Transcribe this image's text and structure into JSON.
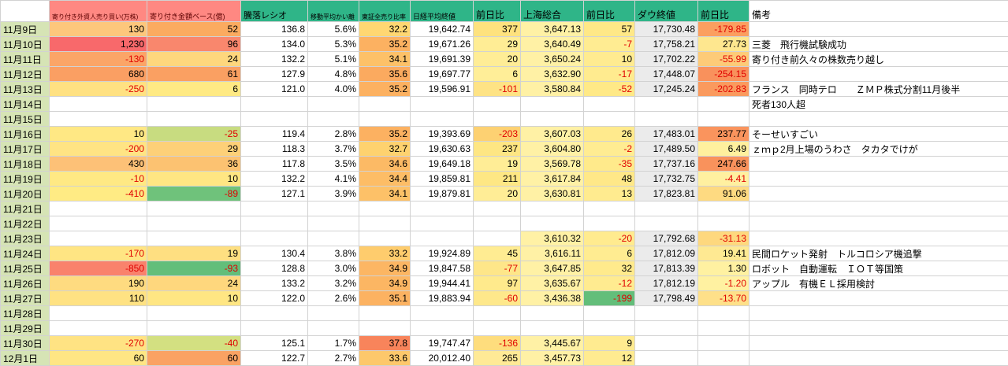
{
  "colors": {
    "date_column_bg": "#d6e4b5",
    "header_pink_bg": "#ff8882",
    "header_pink_text": "#5b0000",
    "header_teal_bg": "#2fb588",
    "negative_text": "#e00000",
    "dow_close_bg": "#ebebeb",
    "shanghai_bg": "#fff1a5",
    "gridline": "#d2d2d2"
  },
  "table": {
    "headers": [
      {
        "label": "",
        "bg": "#ffffff",
        "fg": "#000000"
      },
      {
        "label": "寄り付き外資人売り買い(万株)",
        "bg": "#ff8882",
        "fg": "#5b0000"
      },
      {
        "label": "寄り付き金額ベース(億)",
        "bg": "#ff8882",
        "fg": "#5b0000"
      },
      {
        "label": "騰落レシオ",
        "bg": "#2fb588",
        "fg": "#000000"
      },
      {
        "label": "移動平均かい離",
        "bg": "#2fb588",
        "fg": "#000000"
      },
      {
        "label": "東証全売り比率",
        "bg": "#2fb588",
        "fg": "#000000"
      },
      {
        "label": "日経平均終値",
        "bg": "#2fb588",
        "fg": "#000000"
      },
      {
        "label": "前日比",
        "bg": "#2fb588",
        "fg": "#000000"
      },
      {
        "label": "上海総合",
        "bg": "#2fb588",
        "fg": "#000000"
      },
      {
        "label": "前日比",
        "bg": "#2fb588",
        "fg": "#000000"
      },
      {
        "label": "ダウ終値",
        "bg": "#2fb588",
        "fg": "#000000"
      },
      {
        "label": "前日比",
        "bg": "#2fb588",
        "fg": "#000000"
      },
      {
        "label": "備考",
        "bg": "#ffffff",
        "fg": "#000000"
      }
    ],
    "rows": [
      {
        "date": "11月9日",
        "cells": [
          {
            "v": "130",
            "b": "#fdc77c"
          },
          {
            "v": "52",
            "b": "#fbab60"
          },
          {
            "v": "136.8",
            "b": ""
          },
          {
            "v": "5.6%",
            "b": ""
          },
          {
            "v": "32.2",
            "b": "#ffd772"
          },
          {
            "v": "19,642.74",
            "b": ""
          },
          {
            "v": "377",
            "b": "#fee27e"
          },
          {
            "v": "3,647.13",
            "b": "#fff1a5"
          },
          {
            "v": "57",
            "b": "#ffe887"
          },
          {
            "v": "17,730.48",
            "b": "#ebebeb"
          },
          {
            "v": "-179.85",
            "b": "#fb9f60"
          }
        ],
        "remark": ""
      },
      {
        "date": "11月10日",
        "cells": [
          {
            "v": "1,230",
            "b": "#f8696b"
          },
          {
            "v": "96",
            "b": "#f9876d"
          },
          {
            "v": "134.0",
            "b": ""
          },
          {
            "v": "5.3%",
            "b": ""
          },
          {
            "v": "35.2",
            "b": "#fcb161"
          },
          {
            "v": "19,671.26",
            "b": ""
          },
          {
            "v": "29",
            "b": "#ffed95"
          },
          {
            "v": "3,640.49",
            "b": "#fff1a5"
          },
          {
            "v": "-7",
            "b": "#ffec92"
          },
          {
            "v": "17,758.21",
            "b": "#ebebeb"
          },
          {
            "v": "27.73",
            "b": "#fee78f"
          }
        ],
        "remark": "三菱　飛行機試験成功"
      },
      {
        "date": "11月11日",
        "cells": [
          {
            "v": "-130",
            "b": "#fba567"
          },
          {
            "v": "24",
            "b": "#fed77d"
          },
          {
            "v": "132.2",
            "b": ""
          },
          {
            "v": "5.1%",
            "b": ""
          },
          {
            "v": "34.1",
            "b": "#fdc168"
          },
          {
            "v": "19,691.39",
            "b": ""
          },
          {
            "v": "20",
            "b": "#ffed96"
          },
          {
            "v": "3,650.24",
            "b": "#fff1a5"
          },
          {
            "v": "10",
            "b": "#ffeb90"
          },
          {
            "v": "17,702.22",
            "b": "#ebebeb"
          },
          {
            "v": "-55.99",
            "b": "#fdcb78"
          }
        ],
        "remark": "寄り付き前久々の株数売り越し"
      },
      {
        "date": "11月12日",
        "cells": [
          {
            "v": "680",
            "b": "#fa9f63"
          },
          {
            "v": "61",
            "b": "#faa062"
          },
          {
            "v": "127.9",
            "b": ""
          },
          {
            "v": "4.8%",
            "b": ""
          },
          {
            "v": "35.6",
            "b": "#fbaa5f"
          },
          {
            "v": "19,697.77",
            "b": ""
          },
          {
            "v": "6",
            "b": "#ffee98"
          },
          {
            "v": "3,632.90",
            "b": "#fff1a5"
          },
          {
            "v": "-17",
            "b": "#ffeb8f"
          },
          {
            "v": "17,448.07",
            "b": "#ebebeb"
          },
          {
            "v": "-254.15",
            "b": "#f9915c"
          }
        ],
        "remark": ""
      },
      {
        "date": "11月13日",
        "cells": [
          {
            "v": "-250",
            "b": "#ffe182"
          },
          {
            "v": "6",
            "b": "#ffea84"
          },
          {
            "v": "121.0",
            "b": ""
          },
          {
            "v": "4.0%",
            "b": ""
          },
          {
            "v": "35.2",
            "b": "#fcb161"
          },
          {
            "v": "19,596.91",
            "b": ""
          },
          {
            "v": "-101",
            "b": "#fee385"
          },
          {
            "v": "3,580.84",
            "b": "#fff1a5"
          },
          {
            "v": "-52",
            "b": "#ffe987"
          },
          {
            "v": "17,245.24",
            "b": "#ebebeb"
          },
          {
            "v": "-202.83",
            "b": "#fa9a5e"
          }
        ],
        "remark": "フランス　同時テロ　　ＺＭＰ株式分割11月後半"
      },
      {
        "date": "11月14日",
        "cells": [
          null,
          null,
          null,
          null,
          null,
          null,
          null,
          null,
          null,
          null,
          null
        ],
        "remark": "死者130人超"
      },
      {
        "date": "11月15日",
        "cells": [
          null,
          null,
          null,
          null,
          null,
          null,
          null,
          null,
          null,
          null,
          null
        ],
        "remark": ""
      },
      {
        "date": "11月16日",
        "cells": [
          {
            "v": "10",
            "b": "#ffe884"
          },
          {
            "v": "-25",
            "b": "#c8dc80"
          },
          {
            "v": "119.4",
            "b": ""
          },
          {
            "v": "2.8%",
            "b": ""
          },
          {
            "v": "35.2",
            "b": "#fcb161"
          },
          {
            "v": "19,393.69",
            "b": ""
          },
          {
            "v": "-203",
            "b": "#fdd172"
          },
          {
            "v": "3,607.03",
            "b": "#fff1a5"
          },
          {
            "v": "26",
            "b": "#ffea8d"
          },
          {
            "v": "17,483.01",
            "b": "#ebebeb"
          },
          {
            "v": "237.77",
            "b": "#fa945d"
          }
        ],
        "remark": "そーせいすごい"
      },
      {
        "date": "11月17日",
        "cells": [
          {
            "v": "-200",
            "b": "#ffe484"
          },
          {
            "v": "29",
            "b": "#fdd078"
          },
          {
            "v": "118.3",
            "b": ""
          },
          {
            "v": "3.7%",
            "b": ""
          },
          {
            "v": "32.7",
            "b": "#fed26f"
          },
          {
            "v": "19,630.63",
            "b": ""
          },
          {
            "v": "237",
            "b": "#fee683"
          },
          {
            "v": "3,604.80",
            "b": "#fff1a5"
          },
          {
            "v": "-2",
            "b": "#ffec92"
          },
          {
            "v": "17,489.50",
            "b": "#ebebeb"
          },
          {
            "v": "6.49",
            "b": "#fff09e"
          }
        ],
        "remark": "ｚｍｐ2月上場のうわさ　タカタでけが"
      },
      {
        "date": "11月18日",
        "cells": [
          {
            "v": "430",
            "b": "#fdc177"
          },
          {
            "v": "36",
            "b": "#fcc271"
          },
          {
            "v": "117.8",
            "b": ""
          },
          {
            "v": "3.5%",
            "b": ""
          },
          {
            "v": "34.6",
            "b": "#fcba65"
          },
          {
            "v": "19,649.18",
            "b": ""
          },
          {
            "v": "19",
            "b": "#ffed96"
          },
          {
            "v": "3,569.78",
            "b": "#fff1a5"
          },
          {
            "v": "-35",
            "b": "#ffea8b"
          },
          {
            "v": "17,737.16",
            "b": "#ebebeb"
          },
          {
            "v": "247.66",
            "b": "#f9925c"
          }
        ],
        "remark": ""
      },
      {
        "date": "11月19日",
        "cells": [
          {
            "v": "-10",
            "b": "#ffe984"
          },
          {
            "v": "10",
            "b": "#ffe683"
          },
          {
            "v": "132.2",
            "b": ""
          },
          {
            "v": "4.1%",
            "b": ""
          },
          {
            "v": "34.4",
            "b": "#fdbd66"
          },
          {
            "v": "19,859.81",
            "b": ""
          },
          {
            "v": "211",
            "b": "#fee784"
          },
          {
            "v": "3,617.84",
            "b": "#fff1a5"
          },
          {
            "v": "48",
            "b": "#ffe888"
          },
          {
            "v": "17,732.75",
            "b": "#ebebeb"
          },
          {
            "v": "-4.41",
            "b": "#fff0a0"
          }
        ],
        "remark": ""
      },
      {
        "date": "11月20日",
        "cells": [
          {
            "v": "-410",
            "b": "#ffeb84"
          },
          {
            "v": "-89",
            "b": "#6fc27b"
          },
          {
            "v": "127.1",
            "b": ""
          },
          {
            "v": "3.9%",
            "b": ""
          },
          {
            "v": "34.1",
            "b": "#fdc168"
          },
          {
            "v": "19,879.81",
            "b": ""
          },
          {
            "v": "20",
            "b": "#ffed96"
          },
          {
            "v": "3,630.81",
            "b": "#fff1a5"
          },
          {
            "v": "13",
            "b": "#ffeb8f"
          },
          {
            "v": "17,823.81",
            "b": "#ebebeb"
          },
          {
            "v": "91.06",
            "b": "#feda81"
          }
        ],
        "remark": ""
      },
      {
        "date": "11月21日",
        "cells": [
          null,
          null,
          null,
          null,
          null,
          null,
          null,
          null,
          null,
          null,
          null
        ],
        "remark": ""
      },
      {
        "date": "11月22日",
        "cells": [
          null,
          null,
          null,
          null,
          null,
          null,
          null,
          null,
          null,
          null,
          null
        ],
        "remark": ""
      },
      {
        "date": "11月23日",
        "cells": [
          null,
          null,
          null,
          null,
          null,
          null,
          null,
          {
            "v": "3,610.32",
            "b": "#fff1a5"
          },
          {
            "v": "-20",
            "b": "#ffeb8f"
          },
          {
            "v": "17,792.68",
            "b": "#ebebeb"
          },
          {
            "v": "-31.13",
            "b": "#fed87e"
          }
        ],
        "remark": ""
      },
      {
        "date": "11月24日",
        "cells": [
          {
            "v": "-170",
            "b": "#ffe583"
          },
          {
            "v": "19",
            "b": "#fedf81"
          },
          {
            "v": "130.4",
            "b": ""
          },
          {
            "v": "3.8%",
            "b": ""
          },
          {
            "v": "33.2",
            "b": "#fecc6d"
          },
          {
            "v": "19,924.89",
            "b": ""
          },
          {
            "v": "45",
            "b": "#ffec92"
          },
          {
            "v": "3,616.11",
            "b": "#fff1a5"
          },
          {
            "v": "6",
            "b": "#ffec91"
          },
          {
            "v": "17,812.09",
            "b": "#ebebeb"
          },
          {
            "v": "19.41",
            "b": "#fee992"
          }
        ],
        "remark": "民間ロケット発射　トルコロシア機追撃"
      },
      {
        "date": "11月25日",
        "cells": [
          {
            "v": "-850",
            "b": "#f9826c"
          },
          {
            "v": "-93",
            "b": "#63be7a"
          },
          {
            "v": "128.8",
            "b": ""
          },
          {
            "v": "3.0%",
            "b": ""
          },
          {
            "v": "34.9",
            "b": "#fcb663"
          },
          {
            "v": "19,847.58",
            "b": ""
          },
          {
            "v": "-77",
            "b": "#fee689"
          },
          {
            "v": "3,647.85",
            "b": "#fff1a5"
          },
          {
            "v": "32",
            "b": "#ffea8c"
          },
          {
            "v": "17,813.39",
            "b": "#ebebeb"
          },
          {
            "v": "1.30",
            "b": "#fff1a1"
          }
        ],
        "remark": "ロボット　自動運転　ＩＯＴ等国策"
      },
      {
        "date": "11月26日",
        "cells": [
          {
            "v": "190",
            "b": "#fedb80"
          },
          {
            "v": "24",
            "b": "#fed77d"
          },
          {
            "v": "133.2",
            "b": ""
          },
          {
            "v": "3.2%",
            "b": ""
          },
          {
            "v": "34.9",
            "b": "#fcb663"
          },
          {
            "v": "19,944.41",
            "b": ""
          },
          {
            "v": "97",
            "b": "#ffea8c"
          },
          {
            "v": "3,635.67",
            "b": "#fff1a5"
          },
          {
            "v": "-12",
            "b": "#ffeb90"
          },
          {
            "v": "17,812.19",
            "b": "#ebebeb"
          },
          {
            "v": "-1.20",
            "b": "#fff1a1"
          }
        ],
        "remark": "アップル　有機ＥＬ採用検討"
      },
      {
        "date": "11月27日",
        "cells": [
          {
            "v": "110",
            "b": "#ffe283"
          },
          {
            "v": "10",
            "b": "#ffe683"
          },
          {
            "v": "122.0",
            "b": ""
          },
          {
            "v": "2.6%",
            "b": ""
          },
          {
            "v": "35.1",
            "b": "#fcb261"
          },
          {
            "v": "19,883.94",
            "b": ""
          },
          {
            "v": "-60",
            "b": "#fee88b"
          },
          {
            "v": "3,436.38",
            "b": "#fff1a5"
          },
          {
            "v": "-199",
            "b": "#63be7a"
          },
          {
            "v": "17,798.49",
            "b": "#ebebeb"
          },
          {
            "v": "-13.70",
            "b": "#fee089"
          }
        ],
        "remark": ""
      },
      {
        "date": "11月28日",
        "cells": [
          null,
          null,
          null,
          null,
          null,
          null,
          null,
          null,
          null,
          null,
          null
        ],
        "remark": ""
      },
      {
        "date": "11月29日",
        "cells": [
          null,
          null,
          null,
          null,
          null,
          null,
          null,
          null,
          null,
          null,
          null
        ],
        "remark": ""
      },
      {
        "date": "11月30日",
        "cells": [
          {
            "v": "-270",
            "b": "#ffe383"
          },
          {
            "v": "-40",
            "b": "#d3e081"
          },
          {
            "v": "125.1",
            "b": ""
          },
          {
            "v": "1.7%",
            "b": ""
          },
          {
            "v": "37.8",
            "b": "#f8845b"
          },
          {
            "v": "19,747.47",
            "b": ""
          },
          {
            "v": "-136",
            "b": "#fedd7d"
          },
          {
            "v": "3,445.67",
            "b": "#fff1a5"
          },
          {
            "v": "9",
            "b": "#ffeb90"
          },
          null,
          null
        ],
        "remark": ""
      },
      {
        "date": "12月1日",
        "cells": [
          {
            "v": "60",
            "b": "#ffe684"
          },
          {
            "v": "60",
            "b": "#faa263"
          },
          {
            "v": "122.7",
            "b": ""
          },
          {
            "v": "2.7%",
            "b": ""
          },
          {
            "v": "33.6",
            "b": "#fdc86b"
          },
          {
            "v": "20,012.40",
            "b": ""
          },
          {
            "v": "265",
            "b": "#ffea96"
          },
          {
            "v": "3,457.73",
            "b": "#fff1a5"
          },
          {
            "v": "12",
            "b": "#ffeb90"
          },
          null,
          null
        ],
        "remark": ""
      }
    ]
  }
}
